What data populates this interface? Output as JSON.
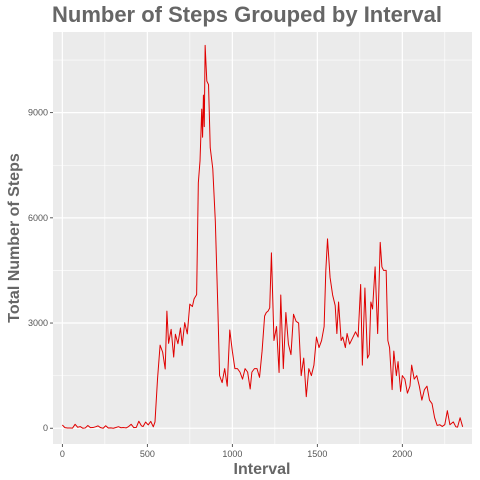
{
  "chart_data": {
    "type": "line",
    "title": "Number of Steps Grouped by Interval",
    "xlabel": "Interval",
    "ylabel": "Total Number of Steps",
    "xlim": [
      -55,
      2410
    ],
    "ylim": [
      -450,
      11300
    ],
    "xticks": [
      0,
      500,
      1000,
      1500,
      2000
    ],
    "yticks": [
      0,
      3000,
      6000,
      9000
    ],
    "grid": true,
    "legend": "none",
    "colors": {
      "line": "#e00000",
      "panel": "#ebebeb",
      "grid": "#ffffff"
    },
    "series": [
      {
        "x": [
          0,
          15,
          30,
          45,
          60,
          75,
          90,
          105,
          120,
          135,
          150,
          165,
          180,
          195,
          210,
          225,
          240,
          255,
          270,
          285,
          300,
          315,
          330,
          345,
          360,
          375,
          390,
          405,
          420,
          435,
          450,
          465,
          475,
          490,
          505,
          520,
          535,
          545,
          560,
          575,
          590,
          605,
          615,
          625,
          640,
          655,
          665,
          680,
          695,
          705,
          720,
          735,
          750,
          765,
          775,
          790,
          800,
          810,
          820,
          825,
          830,
          835,
          840,
          845,
          850,
          860,
          870,
          885,
          900,
          915,
          925,
          940,
          955,
          970,
          985,
          1000,
          1015,
          1030,
          1045,
          1060,
          1075,
          1090,
          1105,
          1115,
          1130,
          1145,
          1160,
          1175,
          1190,
          1200,
          1210,
          1220,
          1230,
          1245,
          1260,
          1275,
          1285,
          1300,
          1315,
          1330,
          1345,
          1360,
          1375,
          1390,
          1405,
          1420,
          1435,
          1450,
          1465,
          1480,
          1495,
          1510,
          1525,
          1540,
          1550,
          1560,
          1575,
          1590,
          1605,
          1615,
          1625,
          1640,
          1650,
          1665,
          1675,
          1690,
          1700,
          1710,
          1725,
          1740,
          1755,
          1765,
          1780,
          1795,
          1805,
          1815,
          1825,
          1840,
          1855,
          1870,
          1880,
          1890,
          1905,
          1915,
          1925,
          1940,
          1950,
          1965,
          1975,
          1990,
          2000,
          2015,
          2030,
          2045,
          2055,
          2070,
          2085,
          2100,
          2115,
          2130,
          2145,
          2160,
          2175,
          2190,
          2205,
          2220,
          2235,
          2250,
          2265,
          2280,
          2300,
          2315,
          2325,
          2340,
          2355
        ],
        "y": [
          91,
          18,
          7,
          8,
          4,
          111,
          28,
          46,
          0,
          8,
          78,
          17,
          19,
          40,
          67,
          16,
          0,
          70,
          8,
          10,
          0,
          20,
          43,
          13,
          19,
          9,
          48,
          112,
          18,
          24,
          200,
          70,
          48,
          176,
          94,
          195,
          40,
          180,
          1410,
          2370,
          2170,
          1690,
          3340,
          2420,
          2820,
          2030,
          2680,
          2410,
          2860,
          2360,
          3010,
          2690,
          3540,
          3470,
          3690,
          3810,
          7000,
          7630,
          9100,
          8300,
          9500,
          8600,
          10920,
          10400,
          9900,
          9800,
          8000,
          7400,
          5900,
          3400,
          1500,
          1300,
          1700,
          1200,
          2800,
          2200,
          1700,
          1700,
          1600,
          1400,
          1700,
          1600,
          1120,
          1600,
          1700,
          1700,
          1450,
          2200,
          3200,
          3300,
          3340,
          3430,
          5000,
          2500,
          2900,
          1590,
          3800,
          1700,
          3300,
          2400,
          2100,
          3250,
          3050,
          3000,
          1500,
          2000,
          900,
          1700,
          1500,
          1800,
          2600,
          2300,
          2500,
          2900,
          4500,
          5400,
          4300,
          3800,
          3500,
          2700,
          3600,
          2500,
          2600,
          2300,
          2700,
          2400,
          2500,
          2600,
          2750,
          2600,
          4100,
          1800,
          4000,
          2000,
          2100,
          3600,
          3400,
          4600,
          2700,
          5300,
          4600,
          4500,
          4500,
          2500,
          2300,
          1100,
          2200,
          1500,
          1900,
          1050,
          1500,
          1400,
          1000,
          1200,
          1800,
          1400,
          1500,
          1200,
          800,
          1100,
          1200,
          800,
          700,
          300,
          80,
          100,
          50,
          100,
          500,
          100,
          180,
          40,
          30,
          300,
          40
        ]
      }
    ]
  }
}
